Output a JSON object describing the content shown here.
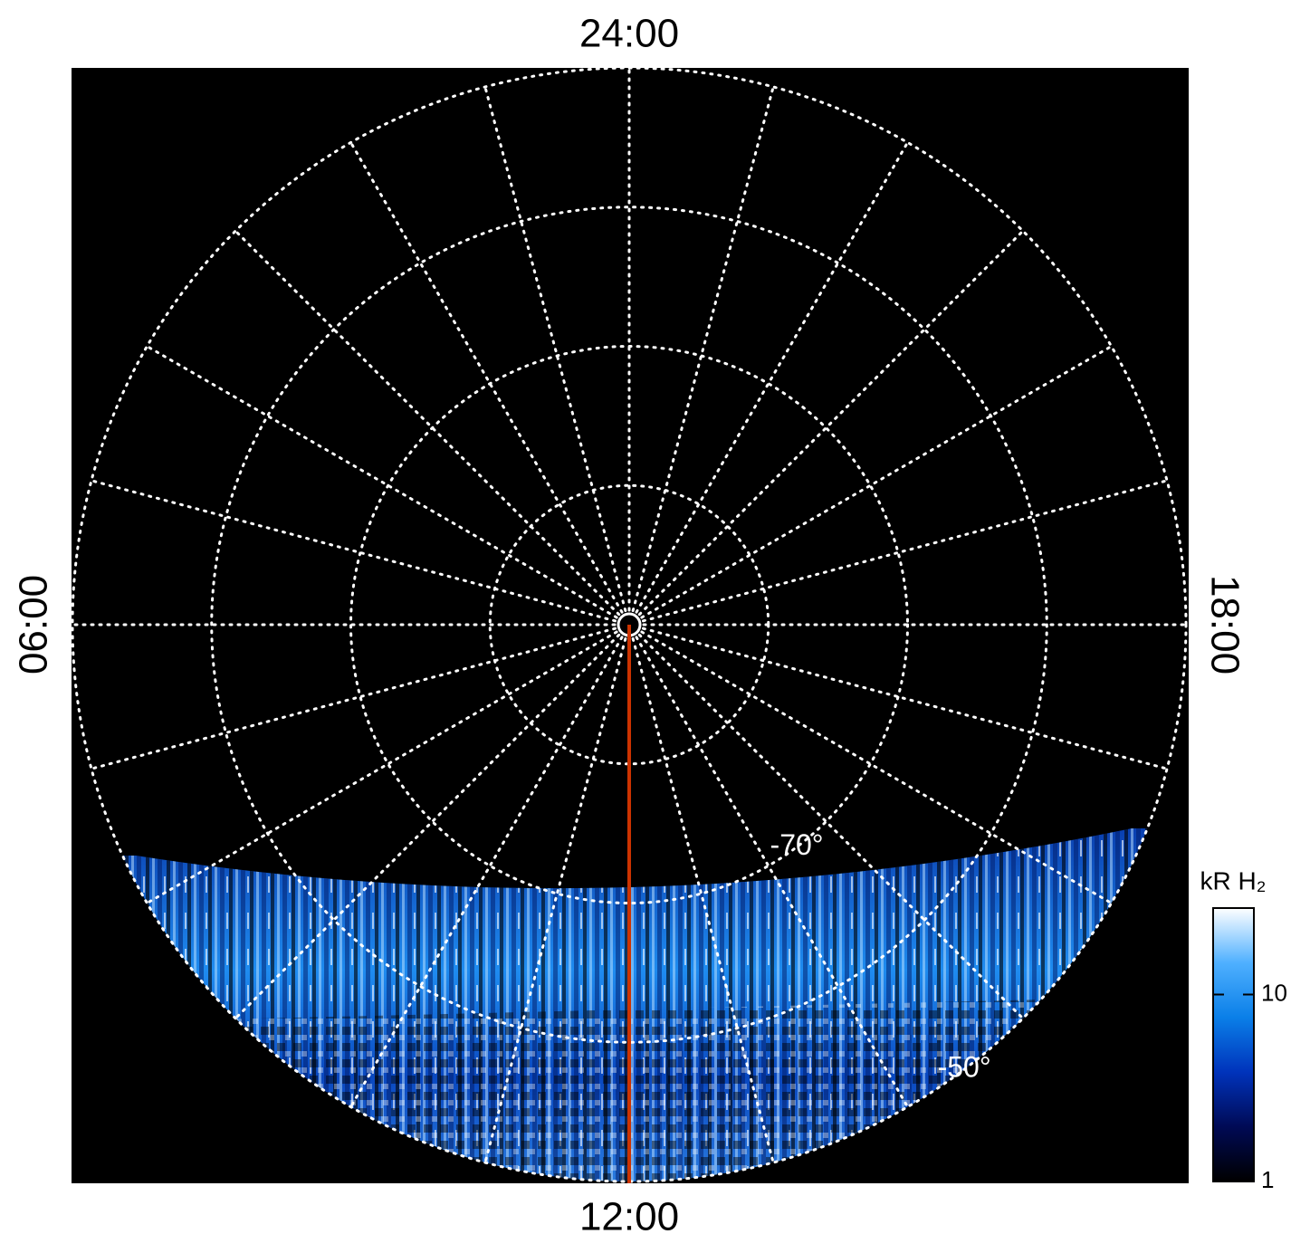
{
  "chart_data": {
    "type": "polar-map",
    "local_time_labels": {
      "top": "24:00",
      "bottom": "12:00",
      "left": "06:00",
      "right": "18:00"
    },
    "rlim": [
      -90,
      -50
    ],
    "rings": [
      -80,
      -70,
      -60,
      -50
    ],
    "meridian_step_hours": 1,
    "latitude_labels": [
      {
        "value": -70,
        "label": "-70°"
      },
      {
        "value": -50,
        "label": "-50°"
      }
    ],
    "grid_color": "#ffffff",
    "noon_line_color": "#cc3300",
    "colorbar": {
      "title": "kR H₂",
      "log": true,
      "clim": [
        1,
        29
      ],
      "ticks": [
        1,
        10
      ],
      "colors": [
        "#000000",
        "#000a55",
        "#0033bb",
        "#0a7fe8",
        "#4fb0ff",
        "#ffffff"
      ]
    }
  }
}
